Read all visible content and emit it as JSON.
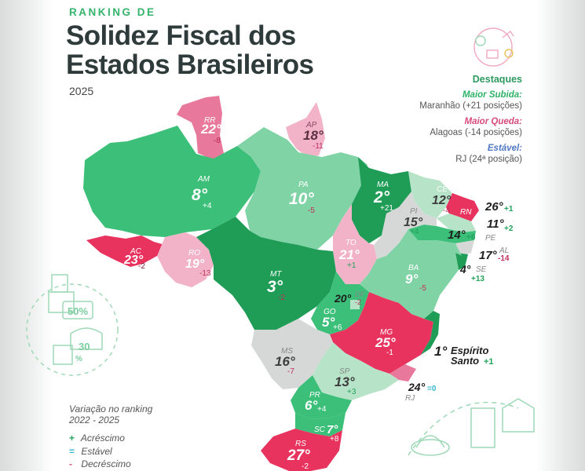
{
  "header": {
    "kicker": "RANKING DE",
    "title_line1": "Solidez Fiscal dos",
    "title_line2": "Estados Brasileiros",
    "year": "2025"
  },
  "highlights": {
    "title": "Destaques",
    "rise_label": "Maior Subida:",
    "rise_value": "Maranhão (+21 posições)",
    "drop_label": "Maior Queda:",
    "drop_value": "Alagoas (-14 posições)",
    "stable_label": "Estável:",
    "stable_value": "RJ (24ª posição)"
  },
  "legend": {
    "title_line1": "Variação no ranking",
    "title_line2": "2022 - 2025",
    "up_symbol": "+",
    "up_label": "Acréscimo",
    "eq_symbol": "=",
    "eq_label": "Estável",
    "down_symbol": "-",
    "down_label": "Decréscimo"
  },
  "colors": {
    "dark_green": "#1f9c55",
    "mid_green": "#3cbf79",
    "light_green": "#7fd3a5",
    "pale_green": "#b7e3c8",
    "grey": "#d6d8d7",
    "light_pink": "#f2b3c8",
    "pink": "#e9799c",
    "red": "#e8335f"
  },
  "states": {
    "RR": {
      "abbr": "RR",
      "rank": "22°",
      "change": "-8"
    },
    "AP": {
      "abbr": "AP",
      "rank": "18°",
      "change": "-11"
    },
    "AM": {
      "abbr": "AM",
      "rank": "8°",
      "change": "+4"
    },
    "PA": {
      "abbr": "PA",
      "rank": "10°",
      "change": "-5"
    },
    "MA": {
      "abbr": "MA",
      "rank": "2°",
      "change": "+21"
    },
    "CE": {
      "abbr": "CE",
      "rank": "12°",
      "change": "-4"
    },
    "RN": {
      "abbr": "RN",
      "rank": "26°",
      "change": "+1"
    },
    "PB": {
      "abbr": "PB",
      "rank": "11°",
      "change": "+2"
    },
    "PE": {
      "abbr": "PE",
      "rank": "14°",
      "change": "+6"
    },
    "AL": {
      "abbr": "AL",
      "rank": "17°",
      "change": "-14"
    },
    "SE": {
      "abbr": "SE",
      "rank": "4°",
      "change": "+13"
    },
    "PI": {
      "abbr": "PI",
      "rank": "15°",
      "change": "+4"
    },
    "TO": {
      "abbr": "TO",
      "rank": "21°",
      "change": "+1"
    },
    "BA": {
      "abbr": "BA",
      "rank": "9°",
      "change": "-5"
    },
    "AC": {
      "abbr": "AC",
      "rank": "23°",
      "change": "-2"
    },
    "RO": {
      "abbr": "RO",
      "rank": "19°",
      "change": "-13"
    },
    "MT": {
      "abbr": "MT",
      "rank": "3°",
      "change": "-2"
    },
    "DF": {
      "abbr": "DF",
      "rank": "20°",
      "change": "-2"
    },
    "GO": {
      "abbr": "GO",
      "rank": "5°",
      "change": "+6"
    },
    "MG": {
      "abbr": "MG",
      "rank": "25°",
      "change": "-1"
    },
    "ES": {
      "abbr": "Espírito",
      "rank": "1°",
      "name2": "Santo",
      "change": "+1"
    },
    "MS": {
      "abbr": "MS",
      "rank": "16°",
      "change": "-7"
    },
    "SP": {
      "abbr": "SP",
      "rank": "13°",
      "change": "+3"
    },
    "RJ": {
      "abbr": "RJ",
      "rank": "24°",
      "change": "=0"
    },
    "PR": {
      "abbr": "PR",
      "rank": "6°",
      "change": "+4"
    },
    "SC": {
      "abbr": "SC",
      "rank": "7°",
      "change": "+8"
    },
    "RS": {
      "abbr": "RS",
      "rank": "27°",
      "change": "-2"
    }
  },
  "decor": {
    "pct1": "50%",
    "pct2": "30",
    "pct2_unit": "%"
  }
}
